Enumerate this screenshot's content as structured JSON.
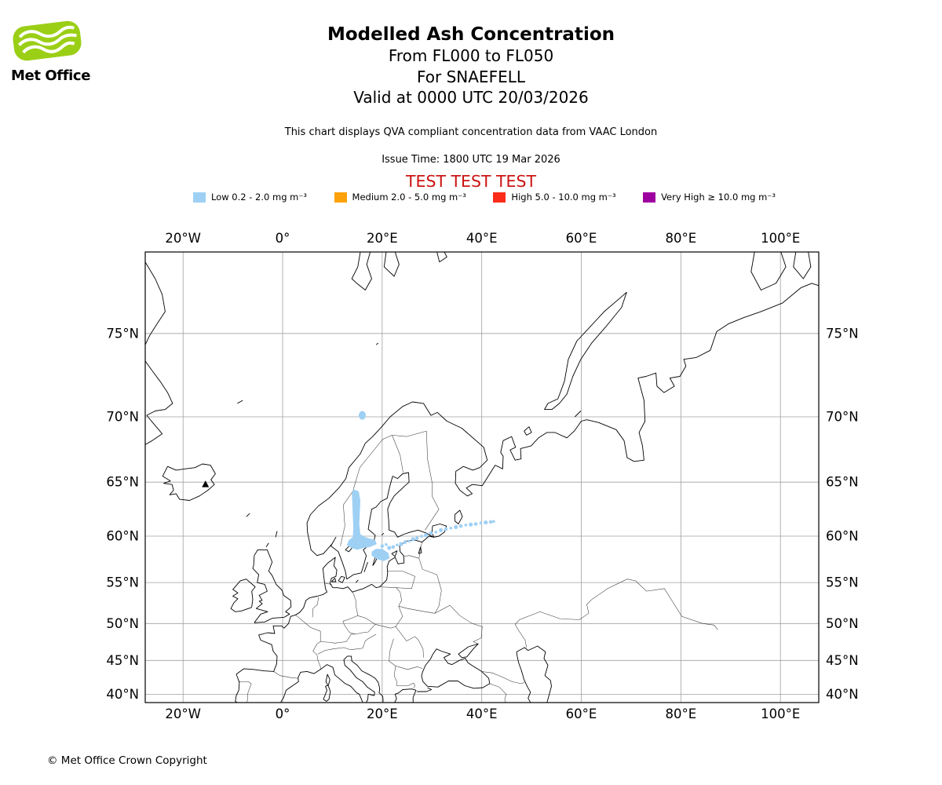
{
  "header": {
    "logo_text": "Met Office",
    "logo_color": "#9bcf16",
    "title": "Modelled Ash Concentration",
    "subtitle_line1": "From FL000 to FL050",
    "subtitle_line2": "For SNAEFELL",
    "subtitle_line3": "Valid at 0000 UTC 20/03/2026",
    "compliance_note": "This chart displays QVA compliant concentration data from VAAC London",
    "issue_time": "Issue Time: 1800 UTC 19 Mar 2026",
    "test_banner": "TEST TEST TEST",
    "test_banner_color": "#cc1414"
  },
  "legend": {
    "items": [
      {
        "label": "Low 0.2 - 2.0 mg m⁻³",
        "color": "#9ed0f4"
      },
      {
        "label": "Medium 2.0 - 5.0 mg m⁻³",
        "color": "#ffa10a"
      },
      {
        "label": "High 5.0 - 10.0 mg m⁻³",
        "color": "#fb2c1a"
      },
      {
        "label": "Very High ≥ 10.0 mg m⁻³",
        "color": "#9e00a0"
      }
    ]
  },
  "chart_data": {
    "type": "map",
    "projection": "mercator",
    "region": "Europe / North Atlantic",
    "grid": true,
    "lon_range": [
      -27.6,
      107.7
    ],
    "lat_range": [
      38.7,
      78.7
    ],
    "lon_ticks": [
      {
        "value": -20,
        "label": "20°W"
      },
      {
        "value": 0,
        "label": "0°"
      },
      {
        "value": 20,
        "label": "20°E"
      },
      {
        "value": 40,
        "label": "40°E"
      },
      {
        "value": 60,
        "label": "60°E"
      },
      {
        "value": 80,
        "label": "80°E"
      },
      {
        "value": 100,
        "label": "100°E"
      }
    ],
    "lat_ticks": [
      {
        "value": 40,
        "label": "40°N"
      },
      {
        "value": 45,
        "label": "45°N"
      },
      {
        "value": 50,
        "label": "50°N"
      },
      {
        "value": 55,
        "label": "55°N"
      },
      {
        "value": 60,
        "label": "60°N"
      },
      {
        "value": 65,
        "label": "65°N"
      },
      {
        "value": 70,
        "label": "70°N"
      },
      {
        "value": 75,
        "label": "75°N"
      }
    ],
    "volcano": {
      "name": "SNAEFELL",
      "lon": -15.5,
      "lat": 64.8
    },
    "ash_low": {
      "concentration": "Low 0.2 - 2.0 mg m⁻³",
      "color": "#9ed0f4",
      "main_plume_polygon": [
        [
          14.2,
          64.4
        ],
        [
          15.3,
          64.2
        ],
        [
          15.6,
          63.4
        ],
        [
          15.5,
          62.2
        ],
        [
          15.4,
          61.2
        ],
        [
          15.6,
          60.2
        ],
        [
          16.6,
          59.9
        ],
        [
          18.6,
          59.6
        ],
        [
          18.9,
          59.2
        ],
        [
          17.6,
          58.9
        ],
        [
          16.2,
          58.8
        ],
        [
          15.0,
          58.6
        ],
        [
          13.8,
          58.8
        ],
        [
          12.9,
          59.1
        ],
        [
          13.3,
          59.6
        ],
        [
          14.1,
          59.9
        ],
        [
          14.2,
          60.8
        ],
        [
          14.1,
          62.0
        ],
        [
          14.0,
          63.2
        ],
        [
          13.9,
          64.0
        ]
      ],
      "baltic_patch_polygon": [
        [
          17.9,
          58.0
        ],
        [
          19.0,
          57.6
        ],
        [
          20.3,
          57.4
        ],
        [
          21.5,
          57.7
        ],
        [
          21.2,
          58.3
        ],
        [
          20.0,
          58.7
        ],
        [
          18.7,
          58.7
        ],
        [
          17.9,
          58.4
        ]
      ],
      "trail_points": [
        [
          20.0,
          59.0
        ],
        [
          20.8,
          59.15
        ],
        [
          21.4,
          58.8
        ],
        [
          22.2,
          58.9
        ],
        [
          23.0,
          59.1
        ],
        [
          23.8,
          59.2
        ],
        [
          24.6,
          59.4
        ],
        [
          25.4,
          59.5
        ],
        [
          26.2,
          59.7
        ],
        [
          27.0,
          59.8
        ],
        [
          27.9,
          60.0
        ],
        [
          28.8,
          60.1
        ],
        [
          29.8,
          60.3
        ],
        [
          30.8,
          60.4
        ],
        [
          31.8,
          60.6
        ],
        [
          32.8,
          60.7
        ],
        [
          33.8,
          60.8
        ],
        [
          34.8,
          60.9
        ],
        [
          35.8,
          61.0
        ],
        [
          36.8,
          61.1
        ],
        [
          37.8,
          61.15
        ],
        [
          38.8,
          61.2
        ],
        [
          39.8,
          61.3
        ],
        [
          40.8,
          61.35
        ],
        [
          41.8,
          61.4
        ],
        [
          42.4,
          61.45
        ]
      ],
      "northern_spot": {
        "lon": 16.0,
        "lat": 70.1
      }
    }
  },
  "footer": {
    "copyright": "© Met Office Crown Copyright"
  }
}
